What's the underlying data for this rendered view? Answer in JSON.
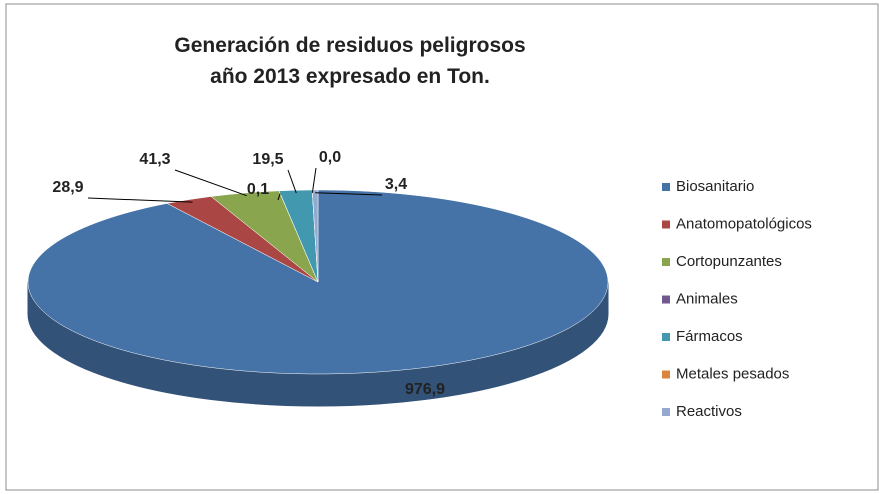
{
  "chart_data": {
    "type": "pie3d",
    "title": "Generación de residuos peligrosos\naño 2013 expresado en Ton.",
    "categories": [
      "Biosanitario",
      "Anatomopatológicos",
      "Cortopunzantes",
      "Animales",
      "Fármacos",
      "Metales pesados",
      "Reactivos"
    ],
    "values": [
      976.9,
      28.9,
      41.3,
      0.1,
      19.5,
      0.0,
      3.4
    ],
    "value_labels": [
      "976,9",
      "28,9",
      "41,3",
      "0,1",
      "19,5",
      "0,0",
      "3,4"
    ],
    "colors": [
      "#4572a7",
      "#aa4643",
      "#89a54e",
      "#71588f",
      "#4198af",
      "#db843d",
      "#93a9cf"
    ],
    "legend": "right"
  }
}
